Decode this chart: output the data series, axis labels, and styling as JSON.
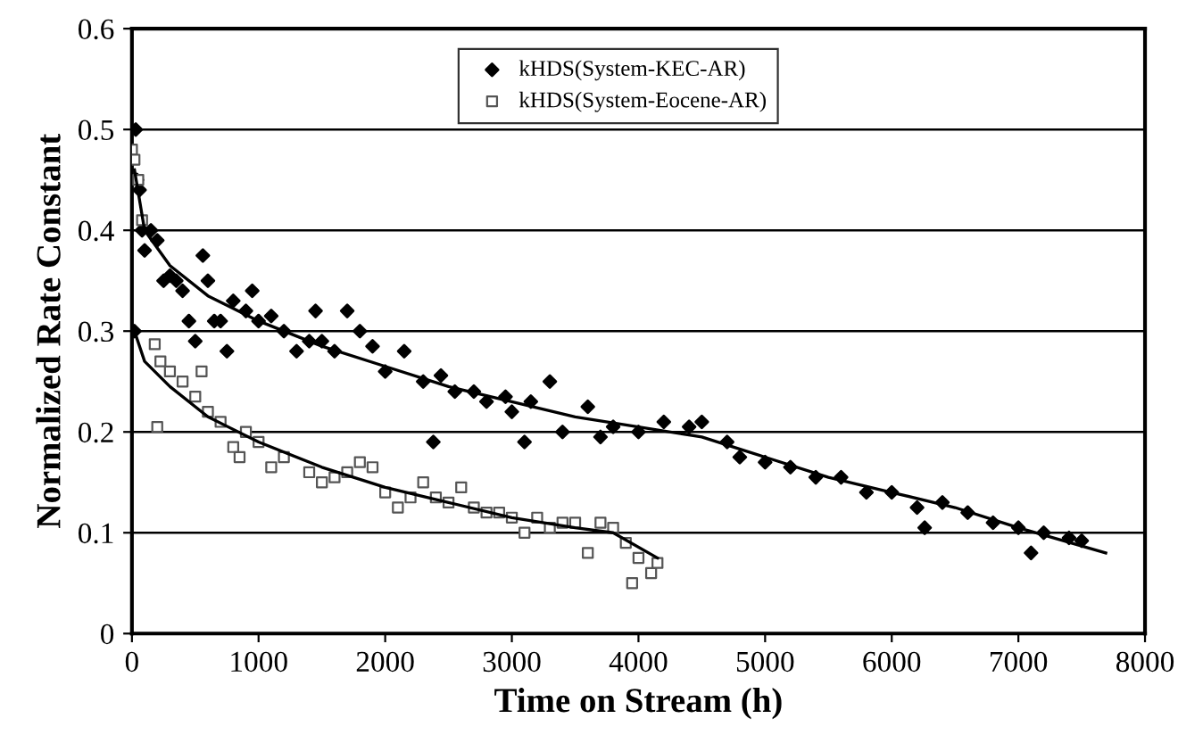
{
  "chart_data": {
    "type": "scatter",
    "xlabel": "Time on Stream (h)",
    "ylabel": "Normalized Rate Constant",
    "xlim": [
      0,
      8000
    ],
    "xticks": [
      0,
      1000,
      2000,
      3000,
      4000,
      5000,
      6000,
      7000,
      8000
    ],
    "ylim": [
      0,
      0.6
    ],
    "yticks": [
      0,
      0.1,
      0.2,
      0.3,
      0.4,
      0.5,
      0.6
    ],
    "grid": "y",
    "legend": "top",
    "series": [
      {
        "name": "kHDS(System-KEC-AR)",
        "color": "#000000",
        "marker": "diamond",
        "x": [
          20,
          30,
          40,
          60,
          80,
          100,
          150,
          200,
          250,
          300,
          350,
          400,
          450,
          500,
          560,
          600,
          650,
          700,
          750,
          800,
          900,
          950,
          1000,
          1100,
          1200,
          1300,
          1400,
          1450,
          1500,
          1600,
          1700,
          1800,
          1900,
          2000,
          2150,
          2300,
          2380,
          2440,
          2550,
          2700,
          2800,
          2950,
          3000,
          3100,
          3150,
          3300,
          3400,
          3600,
          3700,
          3800,
          4000,
          4200,
          4400,
          4500,
          4700,
          4800,
          5000,
          5200,
          5400,
          5600,
          5800,
          6000,
          6200,
          6260,
          6400,
          6600,
          6800,
          7000,
          7100,
          7200,
          7400,
          7500
        ],
        "values": [
          0.3,
          0.5,
          0.45,
          0.44,
          0.4,
          0.38,
          0.4,
          0.39,
          0.35,
          0.355,
          0.35,
          0.34,
          0.31,
          0.29,
          0.375,
          0.35,
          0.31,
          0.31,
          0.28,
          0.33,
          0.32,
          0.34,
          0.31,
          0.315,
          0.3,
          0.28,
          0.29,
          0.32,
          0.29,
          0.28,
          0.32,
          0.3,
          0.285,
          0.26,
          0.28,
          0.25,
          0.19,
          0.256,
          0.24,
          0.24,
          0.23,
          0.235,
          0.22,
          0.19,
          0.23,
          0.25,
          0.2,
          0.225,
          0.195,
          0.205,
          0.2,
          0.21,
          0.205,
          0.21,
          0.19,
          0.175,
          0.17,
          0.165,
          0.155,
          0.155,
          0.14,
          0.14,
          0.125,
          0.105,
          0.13,
          0.12,
          0.11,
          0.105,
          0.08,
          0.1,
          0.095,
          0.092
        ]
      },
      {
        "name": "kHDS(System-Eocene-AR)",
        "color": "#555555",
        "marker": "square",
        "x": [
          0,
          20,
          50,
          80,
          180,
          200,
          225,
          300,
          400,
          500,
          550,
          600,
          700,
          800,
          850,
          900,
          1000,
          1100,
          1200,
          1400,
          1500,
          1600,
          1700,
          1800,
          1900,
          2000,
          2100,
          2200,
          2300,
          2400,
          2500,
          2600,
          2700,
          2800,
          2900,
          3000,
          3100,
          3200,
          3300,
          3400,
          3500,
          3600,
          3700,
          3800,
          3900,
          3950,
          4000,
          4100,
          4150
        ],
        "values": [
          0.48,
          0.47,
          0.45,
          0.41,
          0.287,
          0.205,
          0.27,
          0.26,
          0.25,
          0.235,
          0.26,
          0.22,
          0.21,
          0.185,
          0.175,
          0.2,
          0.19,
          0.165,
          0.175,
          0.16,
          0.15,
          0.155,
          0.16,
          0.17,
          0.165,
          0.14,
          0.125,
          0.135,
          0.15,
          0.135,
          0.13,
          0.145,
          0.125,
          0.12,
          0.12,
          0.115,
          0.1,
          0.115,
          0.105,
          0.11,
          0.11,
          0.08,
          0.11,
          0.105,
          0.09,
          0.05,
          0.075,
          0.06,
          0.07
        ]
      },
      {
        "type": "line",
        "color": "#000000",
        "x": [
          20,
          100,
          300,
          600,
          1000,
          1500,
          2000,
          2500,
          3000,
          3500,
          4000,
          4500,
          5000,
          5500,
          6000,
          6500,
          7000,
          7690
        ],
        "values": [
          0.46,
          0.4,
          0.365,
          0.335,
          0.31,
          0.285,
          0.265,
          0.245,
          0.23,
          0.215,
          0.205,
          0.195,
          0.175,
          0.155,
          0.14,
          0.125,
          0.105,
          0.08
        ]
      },
      {
        "type": "line",
        "color": "#000000",
        "x": [
          20,
          100,
          300,
          600,
          1000,
          1500,
          2000,
          2500,
          3000,
          3500,
          3800,
          4150
        ],
        "values": [
          0.3,
          0.27,
          0.245,
          0.215,
          0.19,
          0.165,
          0.145,
          0.13,
          0.115,
          0.105,
          0.1,
          0.075
        ]
      }
    ]
  }
}
